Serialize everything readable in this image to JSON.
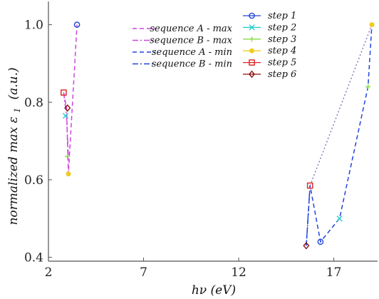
{
  "chart_data": {
    "type": "line",
    "xlabel": "hν  (eV)",
    "ylabel": "normalized max ε",
    "ylabel_sub": "1",
    "ylabel_unit": "(a.u.)",
    "xlim": [
      2,
      19.3
    ],
    "ylim": [
      0.39,
      1.06
    ],
    "xticks": [
      2,
      7,
      12,
      17
    ],
    "yticks": [
      0.4,
      0.6,
      0.8,
      1.0
    ],
    "ytick_labels": [
      "0.4",
      "0.6",
      "0.8",
      "1.0"
    ],
    "grid": false,
    "legend_placement": "top",
    "lines": [
      {
        "name": "sequence A - max",
        "style": "dashed",
        "color": "#cc44dd",
        "x": [
          2.8,
          2.95,
          3.05,
          3.5
        ],
        "y": [
          0.825,
          0.785,
          0.615,
          1.0
        ]
      },
      {
        "name": "sequence B - max",
        "style": "dashdot",
        "color": "#cc44dd",
        "x": [
          2.8,
          2.95,
          3.05
        ],
        "y": [
          0.825,
          0.765,
          0.66
        ]
      },
      {
        "name": "sequence A - min",
        "style": "dashed",
        "color": "#2244dd",
        "x": [
          15.55,
          15.75,
          16.3,
          17.3,
          18.8,
          19.0
        ],
        "y": [
          0.43,
          0.585,
          0.44,
          0.5,
          0.84,
          1.0
        ]
      },
      {
        "name": "sequence B - min",
        "style": "dashdot",
        "color": "#2244dd",
        "x": [
          15.55,
          15.75
        ],
        "y": [
          0.43,
          0.585
        ]
      }
    ],
    "extra_line": {
      "style": "dotted",
      "color": "#9977bb",
      "x": [
        15.75,
        19.0
      ],
      "y": [
        0.585,
        1.0
      ]
    },
    "steps": [
      {
        "name": "step 1",
        "marker": "circle",
        "color": "#2244dd",
        "points": [
          {
            "x": 3.5,
            "y": 1.0
          },
          {
            "x": 16.3,
            "y": 0.44
          }
        ]
      },
      {
        "name": "step 2",
        "marker": "x",
        "color": "#22cccc",
        "points": [
          {
            "x": 2.9,
            "y": 0.765
          },
          {
            "x": 17.3,
            "y": 0.5
          }
        ]
      },
      {
        "name": "step 3",
        "marker": "plus",
        "color": "#88dd44",
        "points": [
          {
            "x": 3.0,
            "y": 0.66
          },
          {
            "x": 18.8,
            "y": 0.84
          }
        ]
      },
      {
        "name": "step 4",
        "marker": "dot",
        "color": "#eecc22",
        "points": [
          {
            "x": 3.05,
            "y": 0.615
          },
          {
            "x": 19.0,
            "y": 1.0
          }
        ]
      },
      {
        "name": "step 5",
        "marker": "square",
        "color": "#dd2222",
        "points": [
          {
            "x": 2.8,
            "y": 0.825
          },
          {
            "x": 15.75,
            "y": 0.585
          }
        ]
      },
      {
        "name": "step 6",
        "marker": "diamond",
        "color": "#881111",
        "points": [
          {
            "x": 3.0,
            "y": 0.785
          },
          {
            "x": 15.55,
            "y": 0.43
          }
        ]
      }
    ]
  }
}
